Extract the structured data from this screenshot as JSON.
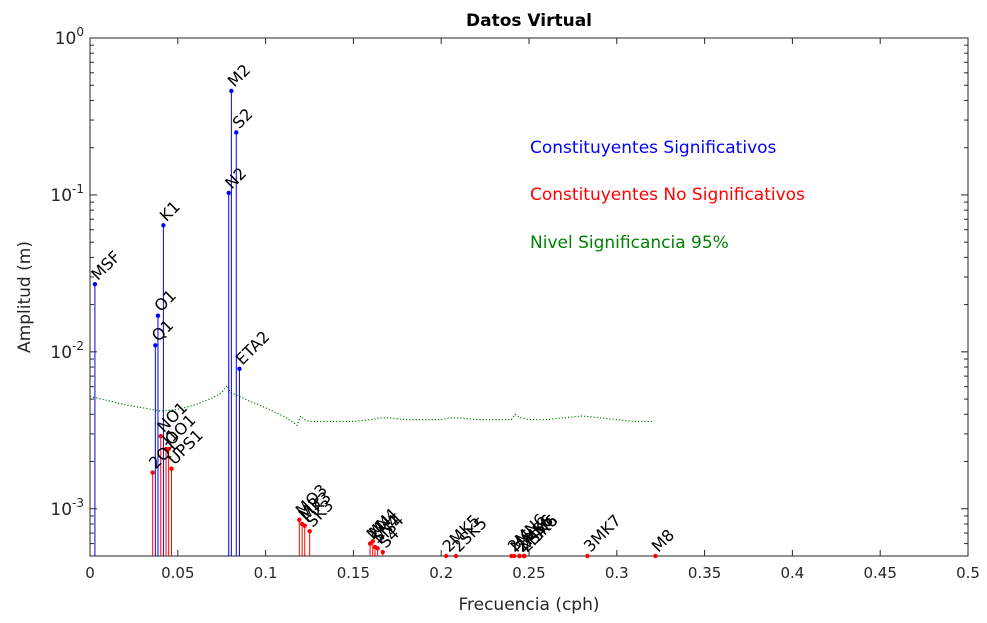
{
  "chart_data": {
    "type": "stem",
    "title": "Datos Virtual",
    "xlabel": "Frecuencia (cph)",
    "ylabel": "Amplitud (m)",
    "xlim": [
      0,
      0.5
    ],
    "ylim": [
      0.0005,
      1
    ],
    "yscale": "log",
    "grid": false,
    "x_ticks": [
      "0",
      "0.05",
      "0.1",
      "0.15",
      "0.2",
      "0.25",
      "0.3",
      "0.35",
      "0.4",
      "0.45",
      "0.5"
    ],
    "y_ticks": [
      {
        "base": "10",
        "exp": "0"
      },
      {
        "base": "10",
        "exp": "-1"
      },
      {
        "base": "10",
        "exp": "-2"
      },
      {
        "base": "10",
        "exp": "-3"
      }
    ],
    "colors": {
      "significant": "#0000ff",
      "non_significant": "#ff0000",
      "threshold": "#008000"
    },
    "annotations": [
      {
        "text": "Constituyentes Significativos",
        "color": "#0000ff"
      },
      {
        "text": "Constituyentes No Significativos",
        "color": "#ff0000"
      },
      {
        "text": "Nivel Significancia 95%",
        "color": "#008000"
      }
    ],
    "series": [
      {
        "name": "Constituyentes Significativos",
        "color": "#0000ff",
        "points": [
          {
            "label": "MSF",
            "x": 0.0028,
            "y": 0.027
          },
          {
            "label": "Q1",
            "x": 0.0372,
            "y": 0.011
          },
          {
            "label": "O1",
            "x": 0.0387,
            "y": 0.017
          },
          {
            "label": "K1",
            "x": 0.0418,
            "y": 0.064
          },
          {
            "label": "N2",
            "x": 0.079,
            "y": 0.103
          },
          {
            "label": "M2",
            "x": 0.0805,
            "y": 0.46
          },
          {
            "label": "S2",
            "x": 0.0833,
            "y": 0.25
          },
          {
            "label": "ETA2",
            "x": 0.0851,
            "y": 0.0078
          }
        ]
      },
      {
        "name": "Constituyentes No Significativos",
        "color": "#ff0000",
        "points": [
          {
            "label": "2Q1",
            "x": 0.0357,
            "y": 0.0017
          },
          {
            "label": "NO1",
            "x": 0.0403,
            "y": 0.0029
          },
          {
            "label": "J1",
            "x": 0.0433,
            "y": 0.0024
          },
          {
            "label": "OO1",
            "x": 0.0448,
            "y": 0.0024
          },
          {
            "label": "UPS1",
            "x": 0.0464,
            "y": 0.0018
          },
          {
            "label": "MO3",
            "x": 0.1192,
            "y": 0.00085
          },
          {
            "label": "M3",
            "x": 0.1208,
            "y": 0.0008
          },
          {
            "label": "MK3",
            "x": 0.1223,
            "y": 0.00078
          },
          {
            "label": "SK3",
            "x": 0.1251,
            "y": 0.00072
          },
          {
            "label": "MN4",
            "x": 0.1595,
            "y": 0.0006
          },
          {
            "label": "M4",
            "x": 0.161,
            "y": 0.00062
          },
          {
            "label": "SN4",
            "x": 0.1623,
            "y": 0.00057
          },
          {
            "label": "MS4",
            "x": 0.1638,
            "y": 0.00056
          },
          {
            "label": "S4",
            "x": 0.1667,
            "y": 0.00053
          },
          {
            "label": "2MK5",
            "x": 0.2028,
            "y": 0.0005
          },
          {
            "label": "2SK5",
            "x": 0.2084,
            "y": 0.0005
          },
          {
            "label": "2MN6",
            "x": 0.24,
            "y": 0.0005
          },
          {
            "label": "M6",
            "x": 0.2415,
            "y": 0.0005
          },
          {
            "label": "2MS6",
            "x": 0.2444,
            "y": 0.0005
          },
          {
            "label": "2MK6",
            "x": 0.2447,
            "y": 0.0005
          },
          {
            "label": "2SM6",
            "x": 0.2472,
            "y": 0.0005
          },
          {
            "label": "MSK6",
            "x": 0.2474,
            "y": 0.0005
          },
          {
            "label": "3MK7",
            "x": 0.2833,
            "y": 0.0005
          },
          {
            "label": "M8",
            "x": 0.322,
            "y": 0.0005
          }
        ]
      }
    ],
    "threshold": {
      "name": "Nivel Significancia 95%",
      "color": "#008000",
      "x": [
        0.0,
        0.01,
        0.02,
        0.03,
        0.04,
        0.05,
        0.06,
        0.07,
        0.075,
        0.078,
        0.08,
        0.085,
        0.09,
        0.1,
        0.11,
        0.115,
        0.118,
        0.12,
        0.122,
        0.125,
        0.13,
        0.14,
        0.15,
        0.16,
        0.165,
        0.17,
        0.18,
        0.19,
        0.2,
        0.205,
        0.21,
        0.22,
        0.23,
        0.24,
        0.242,
        0.245,
        0.25,
        0.26,
        0.27,
        0.28,
        0.29,
        0.3,
        0.31,
        0.32
      ],
      "y": [
        0.0052,
        0.0049,
        0.0046,
        0.0044,
        0.0042,
        0.0043,
        0.0046,
        0.0051,
        0.0055,
        0.0061,
        0.0055,
        0.0052,
        0.0049,
        0.0044,
        0.0039,
        0.0036,
        0.0034,
        0.0039,
        0.0037,
        0.0036,
        0.0036,
        0.0036,
        0.0036,
        0.0037,
        0.0038,
        0.0038,
        0.0037,
        0.0037,
        0.0037,
        0.0038,
        0.0038,
        0.0037,
        0.0037,
        0.0037,
        0.004,
        0.0038,
        0.0037,
        0.0037,
        0.0038,
        0.0039,
        0.0038,
        0.0037,
        0.0036,
        0.0036
      ]
    }
  }
}
